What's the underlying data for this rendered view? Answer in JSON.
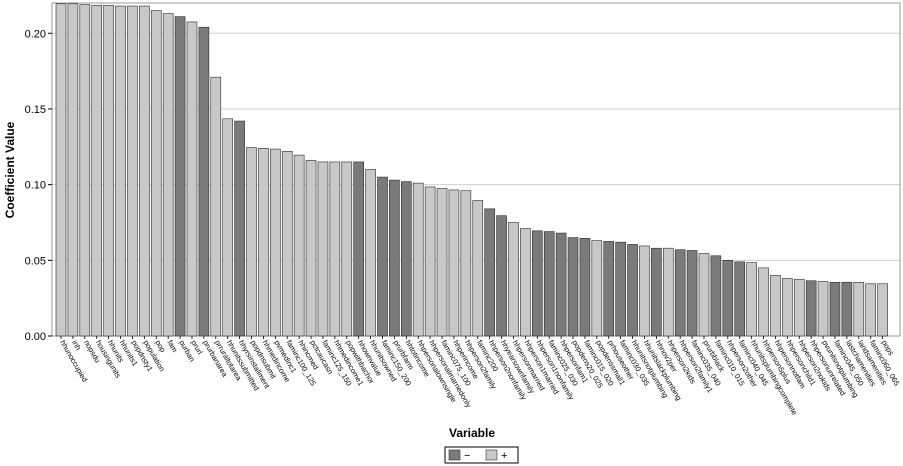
{
  "chart_data": {
    "type": "bar",
    "xlabel": "Variable",
    "ylabel": "Coefficient Value",
    "ylim": [
      0,
      0.22
    ],
    "yticks": [
      "0.00",
      "0.05",
      "0.10",
      "0.15",
      "0.20"
    ],
    "grid": true,
    "legend_position": "bottom-center",
    "colors": {
      "negative": "#7a7a7a",
      "positive": "#c8c8c8",
      "grid": "#cfcfcf",
      "frame": "#9a9a9a"
    },
    "legend": [
      {
        "sign": "negative",
        "label": "−"
      },
      {
        "sign": "positive",
        "label": "+"
      }
    ],
    "bars": [
      {
        "category": "hhunoccupied",
        "value": 0.2195,
        "sign": "positive"
      },
      {
        "category": "inh",
        "value": 0.2195,
        "sign": "positive"
      },
      {
        "category": "nopsdu",
        "value": 0.219,
        "sign": "positive"
      },
      {
        "category": "housingunits",
        "value": 0.2185,
        "sign": "positive"
      },
      {
        "category": "hhunits",
        "value": 0.2185,
        "sign": "positive"
      },
      {
        "category": "hhunits1",
        "value": 0.218,
        "sign": "positive"
      },
      {
        "category": "popdnsty1",
        "value": 0.218,
        "sign": "positive"
      },
      {
        "category": "population",
        "value": 0.218,
        "sign": "positive"
      },
      {
        "category": "pop",
        "value": 0.215,
        "sign": "positive"
      },
      {
        "category": "fam",
        "value": 0.213,
        "sign": "positive"
      },
      {
        "category": "purban",
        "value": 0.211,
        "sign": "negative"
      },
      {
        "category": "prurl",
        "value": 0.2075,
        "sign": "positive"
      },
      {
        "category": "prurbanarea",
        "value": 0.204,
        "sign": "negative"
      },
      {
        "category": "prruraltotarea",
        "value": 0.171,
        "sign": "positive"
      },
      {
        "category": "hhunitssubmitted",
        "value": 0.1435,
        "sign": "positive"
      },
      {
        "category": "hhyrsinstallment",
        "value": 0.142,
        "sign": "negative"
      },
      {
        "category": "popdnsubmit",
        "value": 0.1245,
        "sign": "positive"
      },
      {
        "category": "hhmedincome",
        "value": 0.124,
        "sign": "positive"
      },
      {
        "category": "pvmedinc1",
        "value": 0.1235,
        "sign": "positive"
      },
      {
        "category": "faminc100_125",
        "value": 0.122,
        "sign": "positive"
      },
      {
        "category": "hhincmed",
        "value": 0.1195,
        "sign": "positive"
      },
      {
        "category": "pctcaucasn",
        "value": 0.116,
        "sign": "positive"
      },
      {
        "category": "faminc125_150",
        "value": 0.115,
        "sign": "positive"
      },
      {
        "category": "hhmedincome1",
        "value": 0.115,
        "sign": "positive"
      },
      {
        "category": "popwithbachor",
        "value": 0.115,
        "sign": "positive"
      },
      {
        "category": "hhownvalue",
        "value": 0.115,
        "sign": "negative"
      },
      {
        "category": "hhunitsowned",
        "value": 0.11,
        "sign": "positive"
      },
      {
        "category": "faminc150_200",
        "value": 0.105,
        "sign": "negative"
      },
      {
        "category": "prurbfarm",
        "value": 0.103,
        "sign": "negative"
      },
      {
        "category": "hhtotincome",
        "value": 0.102,
        "sign": "negative"
      },
      {
        "category": "hhpersonalownsingle",
        "value": 0.101,
        "sign": "positive"
      },
      {
        "category": "hhpersonalmarriedonly",
        "value": 0.0985,
        "sign": "positive"
      },
      {
        "category": "faminc075_100",
        "value": 0.0975,
        "sign": "positive"
      },
      {
        "category": "hhperincome",
        "value": 0.0965,
        "sign": "positive"
      },
      {
        "category": "hhperson2family",
        "value": 0.096,
        "sign": "positive"
      },
      {
        "category": "faminc200",
        "value": 0.0895,
        "sign": "positive"
      },
      {
        "category": "hhperson2nonfamily",
        "value": 0.084,
        "sign": "negative"
      },
      {
        "category": "hhyearsownfamily",
        "value": 0.0795,
        "sign": "negative"
      },
      {
        "category": "hhpersonmarried",
        "value": 0.075,
        "sign": "positive"
      },
      {
        "category": "hhperson1married",
        "value": 0.071,
        "sign": "positive"
      },
      {
        "category": "hhperson1nonfamily",
        "value": 0.0695,
        "sign": "negative"
      },
      {
        "category": "faminc025_030",
        "value": 0.069,
        "sign": "negative"
      },
      {
        "category": "hhpersonfam1",
        "value": 0.068,
        "sign": "negative"
      },
      {
        "category": "popdens20_025",
        "value": 0.065,
        "sign": "negative"
      },
      {
        "category": "faminc015_020",
        "value": 0.0645,
        "sign": "negative"
      },
      {
        "category": "popdenssmall1",
        "value": 0.063,
        "sign": "positive"
      },
      {
        "category": "prhouseother",
        "value": 0.0625,
        "sign": "negative"
      },
      {
        "category": "faminc030_035",
        "value": 0.062,
        "sign": "negative"
      },
      {
        "category": "hhunitsnotplumbing",
        "value": 0.0605,
        "sign": "negative"
      },
      {
        "category": "hhunitslackplumbing",
        "value": 0.0595,
        "sign": "positive"
      },
      {
        "category": "hhnov2per",
        "value": 0.058,
        "sign": "negative"
      },
      {
        "category": "hhperson2kids",
        "value": 0.058,
        "sign": "positive"
      },
      {
        "category": "hhperson2family1",
        "value": 0.057,
        "sign": "negative"
      },
      {
        "category": "faminc035_040",
        "value": 0.0565,
        "sign": "negative"
      },
      {
        "category": "prurbblack",
        "value": 0.0545,
        "sign": "positive"
      },
      {
        "category": "faminc010_015",
        "value": 0.053,
        "sign": "negative"
      },
      {
        "category": "hhperson2other",
        "value": 0.05,
        "sign": "negative"
      },
      {
        "category": "faminc040_045",
        "value": 0.049,
        "sign": "negative"
      },
      {
        "category": "hhunitsplumbingcomplete",
        "value": 0.0485,
        "sign": "positive"
      },
      {
        "category": "hhperson5plus",
        "value": 0.045,
        "sign": "positive"
      },
      {
        "category": "hhpersonnotfam",
        "value": 0.04,
        "sign": "positive"
      },
      {
        "category": "hhpersonchild1",
        "value": 0.038,
        "sign": "positive"
      },
      {
        "category": "hhperson2nokids",
        "value": 0.0375,
        "sign": "positive"
      },
      {
        "category": "hhpersonunrelated",
        "value": 0.0365,
        "sign": "negative"
      },
      {
        "category": "pvunitsnotplumbing",
        "value": 0.036,
        "sign": "positive"
      },
      {
        "category": "faminc045_050",
        "value": 0.0355,
        "sign": "negative"
      },
      {
        "category": "lastchamenities",
        "value": 0.0355,
        "sign": "negative"
      },
      {
        "category": "landsamenities",
        "value": 0.0355,
        "sign": "positive"
      },
      {
        "category": "faminc060_065",
        "value": 0.0345,
        "sign": "positive"
      },
      {
        "category": "pops",
        "value": 0.0345,
        "sign": "positive"
      }
    ]
  }
}
